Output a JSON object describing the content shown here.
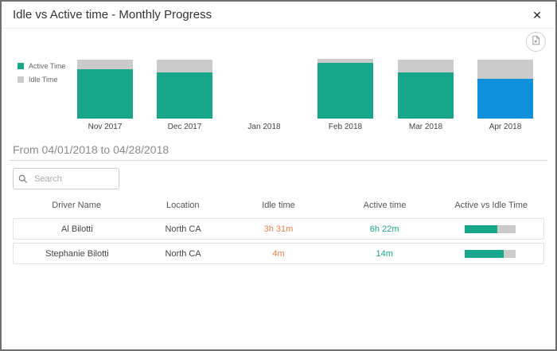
{
  "dialog": {
    "title": "Idle vs Active time - Monthly Progress",
    "close_glyph": "✕"
  },
  "icons": {
    "close": "close-icon",
    "export": "export-image-icon",
    "search": "magnifier-icon"
  },
  "chart_data": {
    "type": "bar",
    "subtype": "stacked-column",
    "categories": [
      "Nov 2017",
      "Dec 2017",
      "Jan 2018",
      "Feb 2018",
      "Mar 2018",
      "Apr 2018"
    ],
    "series": [
      {
        "name": "Active Time",
        "color": "#18A68A",
        "values": [
          84,
          78,
          0,
          95,
          78,
          68
        ]
      },
      {
        "name": "Idle Time",
        "color": "#CBCBCB",
        "values": [
          16,
          22,
          0,
          7,
          22,
          32
        ]
      }
    ],
    "highlight": {
      "category": "Apr 2018",
      "series": "Active Time",
      "color": "#0E90DB"
    },
    "title": "",
    "xlabel": "",
    "ylabel": "",
    "ylim": [
      0,
      102
    ],
    "grid": false,
    "legend_position": "left",
    "note": "values are percent of tallest column; Jan 2018 has no data; Apr 2018 active segment highlighted blue (selected month)"
  },
  "period": {
    "label": "From 04/01/2018 to 04/28/2018"
  },
  "search": {
    "placeholder": "Search",
    "value": ""
  },
  "table": {
    "columns": [
      "Driver Name",
      "Location",
      "Idle time",
      "Active time",
      "Active vs Idle Time"
    ],
    "rows": [
      {
        "driver": "Al Bilotti",
        "location": "North CA",
        "idle_time": "3h 31m",
        "active_time": "6h 22m",
        "active_pct": 64
      },
      {
        "driver": "Stephanie Bilotti",
        "location": "North CA",
        "idle_time": "4m",
        "active_time": "14m",
        "active_pct": 76
      }
    ]
  },
  "colors": {
    "active": "#18A68A",
    "idle": "#CBCBCB",
    "selected_month": "#0E90DB",
    "idle_text": "#E8824D",
    "active_text": "#18A68A",
    "border": "#6F6F6F"
  }
}
